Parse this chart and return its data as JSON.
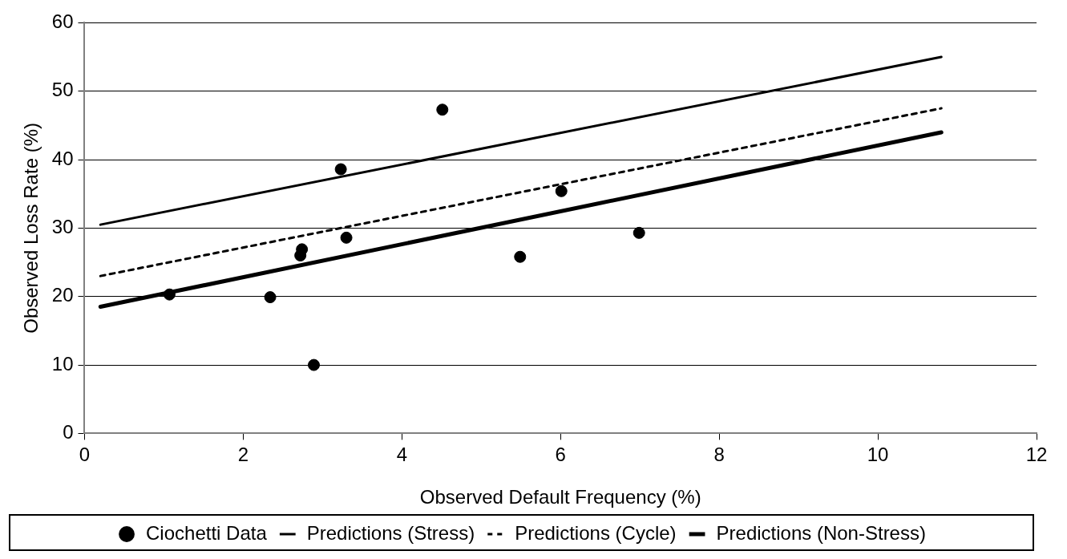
{
  "chart_data": {
    "type": "scatter",
    "xlabel": "Observed Default Frequency (%)",
    "ylabel": "Observed Loss Rate (%)",
    "xlim": [
      0,
      12
    ],
    "xticks": [
      0,
      2,
      4,
      6,
      8,
      10,
      12
    ],
    "ylim": [
      0,
      60
    ],
    "yticks": [
      0,
      10,
      20,
      30,
      40,
      50,
      60
    ],
    "grid": "y",
    "legend": "bottom",
    "marker": "circle",
    "series": [
      {
        "name": "Ciochetti Data",
        "color": "#000000",
        "x": [
          1.07,
          2.34,
          2.72,
          2.74,
          2.89,
          3.23,
          3.3,
          4.51,
          5.49,
          6.01,
          6.99
        ],
        "values": [
          20.3,
          19.9,
          26,
          26.9,
          10,
          38.6,
          28.6,
          47.3,
          25.8,
          35.4,
          29.3
        ]
      },
      {
        "name": "Predictions (Stress)",
        "type": "line",
        "color": "#000000",
        "line_style": "solid",
        "marker": "none",
        "x": [
          0.2,
          10.8
        ],
        "values": [
          30.5,
          55
        ]
      },
      {
        "name": "Predictions (Cycle)",
        "type": "line",
        "color": "#000000",
        "line_style": "dashed",
        "marker": "none",
        "x": [
          0.2,
          10.8
        ],
        "values": [
          23,
          47.5
        ]
      },
      {
        "name": "Predictions (Non-Stress)",
        "type": "line",
        "color": "#000000",
        "line_style": "solid",
        "marker": "none",
        "x": [
          0.2,
          10.8
        ],
        "values": [
          18.5,
          44
        ]
      }
    ]
  }
}
